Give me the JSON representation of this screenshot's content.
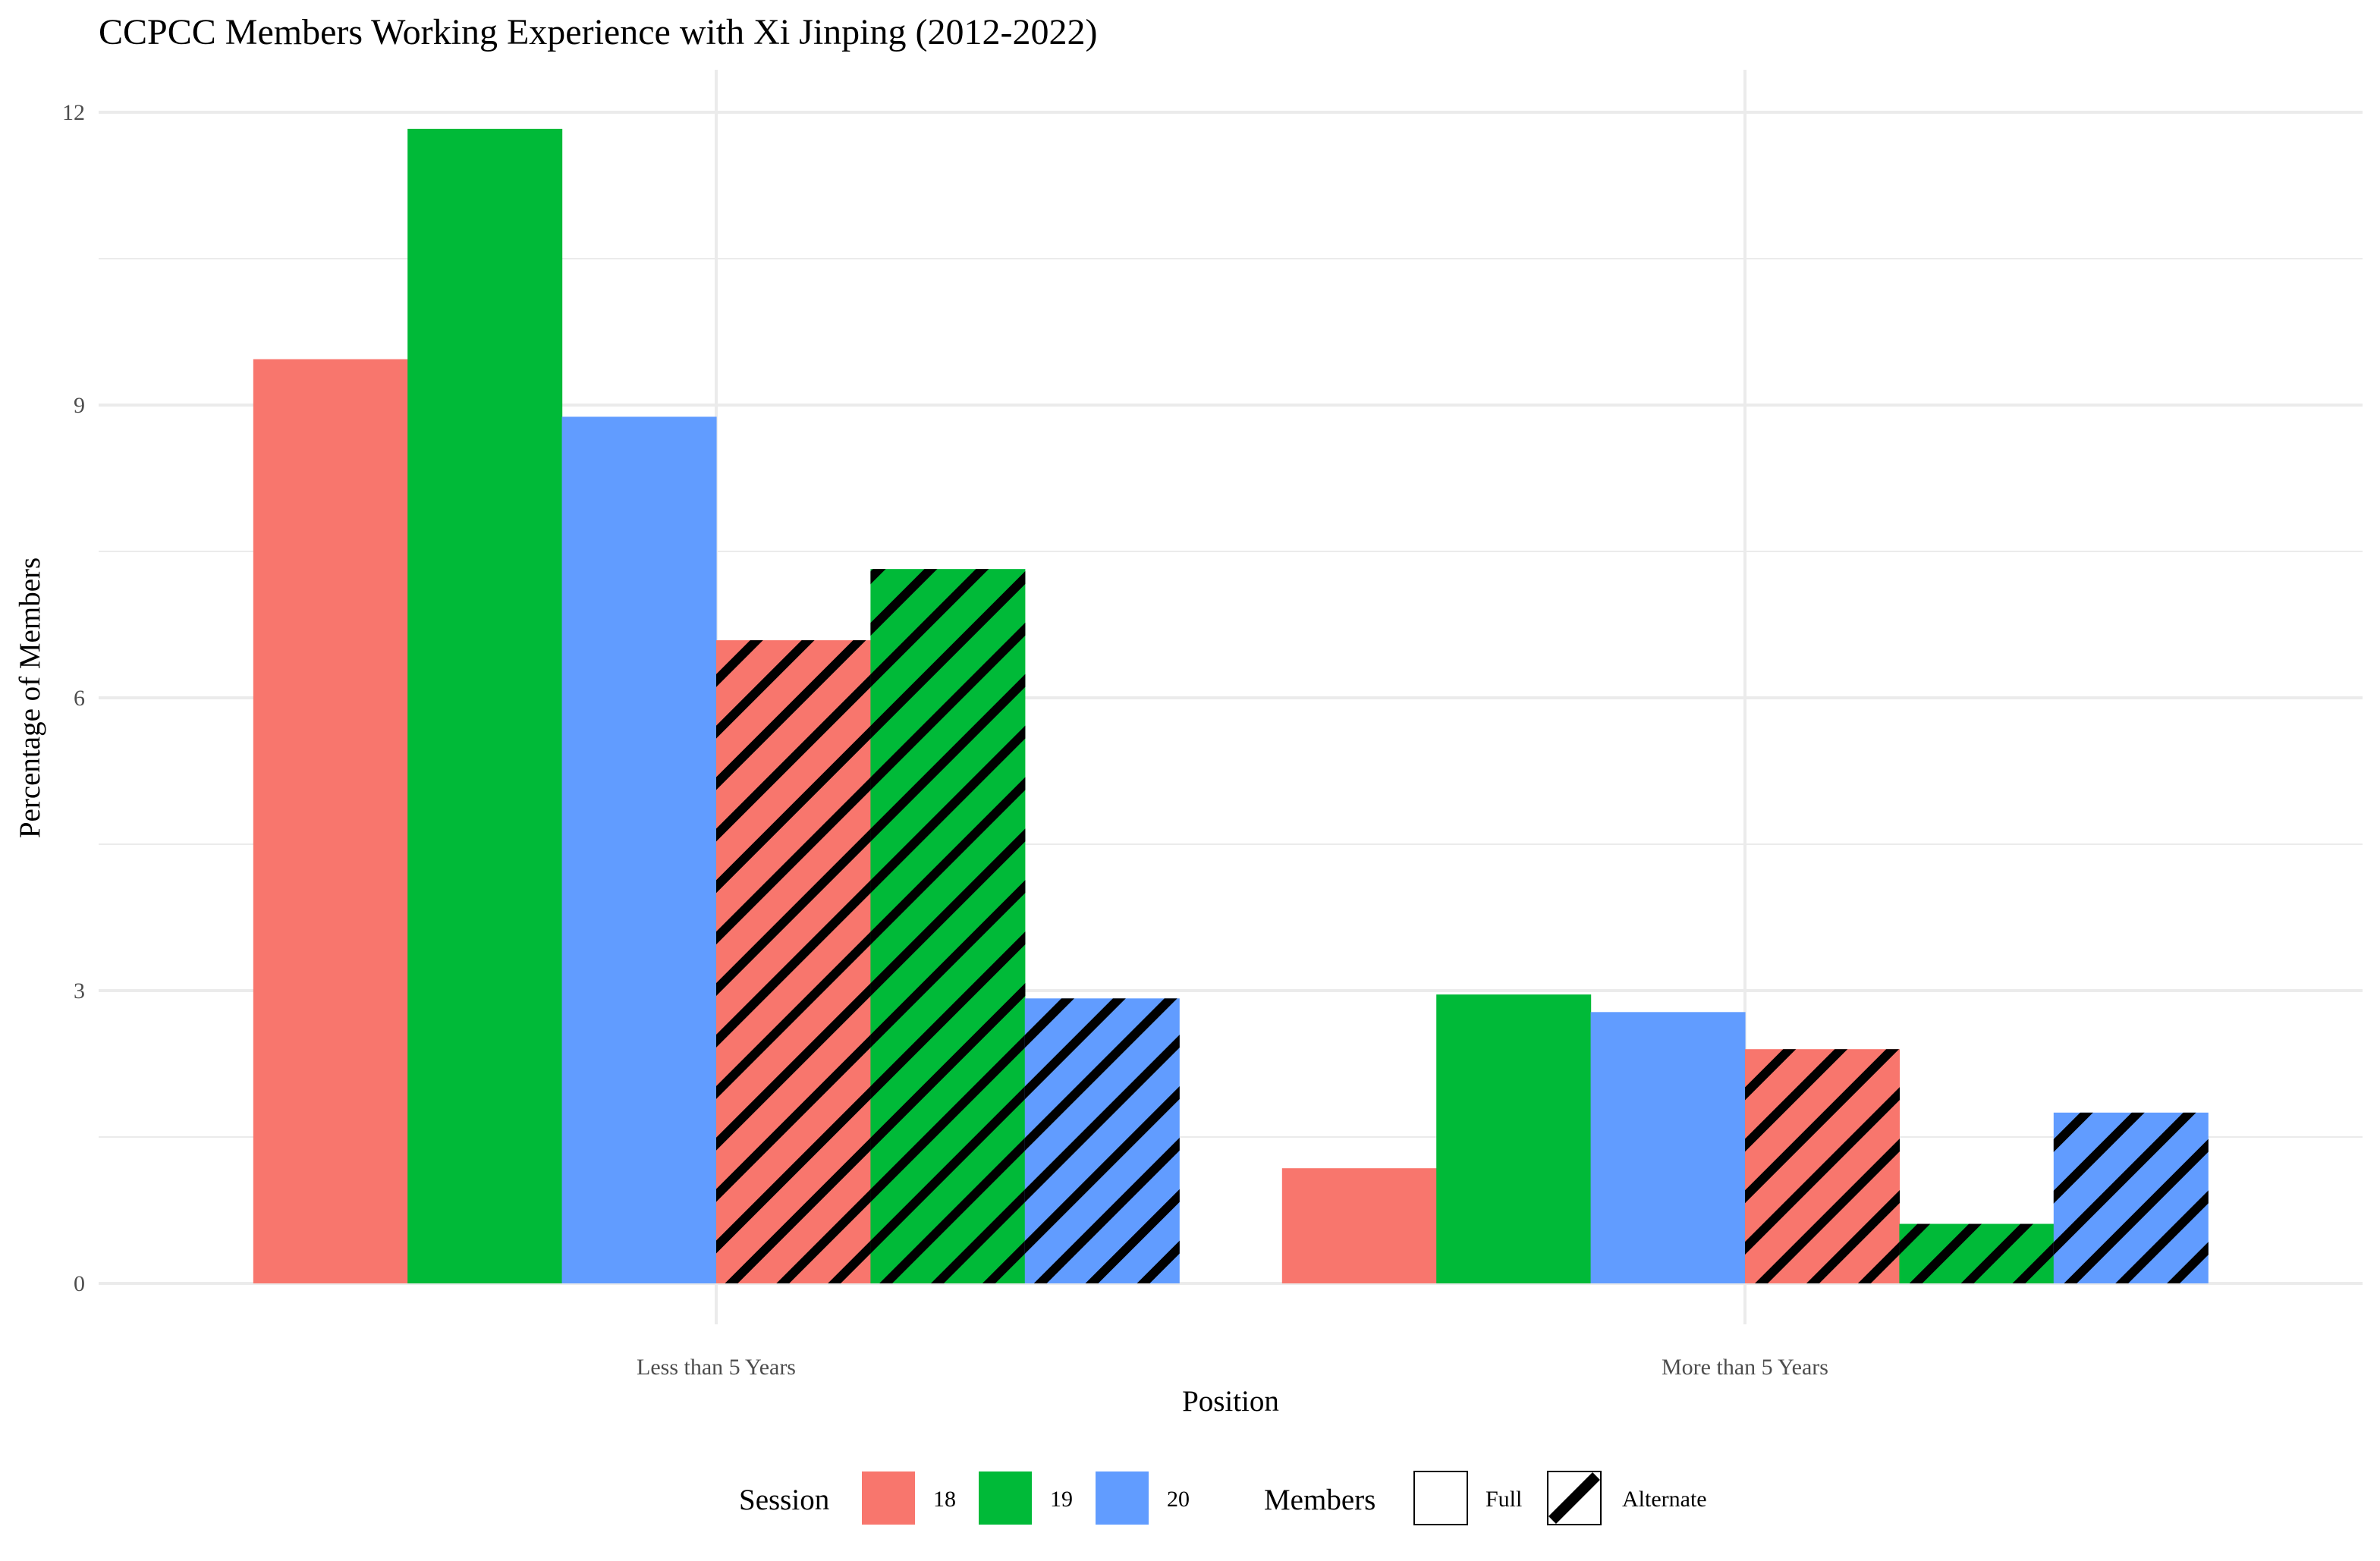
{
  "chart_data": {
    "type": "bar",
    "title": "CCPCC Members Working Experience with Xi Jinping (2012-2022)",
    "xlabel": "Position",
    "ylabel": "Percentage of Members",
    "categories": [
      "Less than 5 Years",
      "More than 5 Years"
    ],
    "ylim": [
      0,
      12
    ],
    "yticks": [
      0,
      3,
      6,
      9,
      12
    ],
    "grid": true,
    "legend_position": "bottom",
    "legend": {
      "session_title": "Session",
      "members_title": "Members",
      "sessions": [
        {
          "label": "18",
          "color": "#F8766D"
        },
        {
          "label": "19",
          "color": "#00BA38"
        },
        {
          "label": "20",
          "color": "#619CFF"
        }
      ],
      "members": [
        {
          "label": "Full",
          "pattern": "none"
        },
        {
          "label": "Alternate",
          "pattern": "stripe"
        }
      ]
    },
    "series": [
      {
        "session": "18",
        "members": "Full",
        "color": "#F8766D",
        "pattern": "none",
        "values": [
          9.47,
          1.18
        ]
      },
      {
        "session": "19",
        "members": "Full",
        "color": "#00BA38",
        "pattern": "none",
        "values": [
          11.83,
          2.96
        ]
      },
      {
        "session": "20",
        "members": "Full",
        "color": "#619CFF",
        "pattern": "none",
        "values": [
          8.88,
          2.78
        ]
      },
      {
        "session": "18",
        "members": "Alternate",
        "color": "#F8766D",
        "pattern": "stripe",
        "values": [
          6.59,
          2.4
        ]
      },
      {
        "session": "19",
        "members": "Alternate",
        "color": "#00BA38",
        "pattern": "stripe",
        "values": [
          7.32,
          0.61
        ]
      },
      {
        "session": "20",
        "members": "Alternate",
        "color": "#619CFF",
        "pattern": "stripe",
        "values": [
          2.92,
          1.75
        ]
      }
    ]
  }
}
